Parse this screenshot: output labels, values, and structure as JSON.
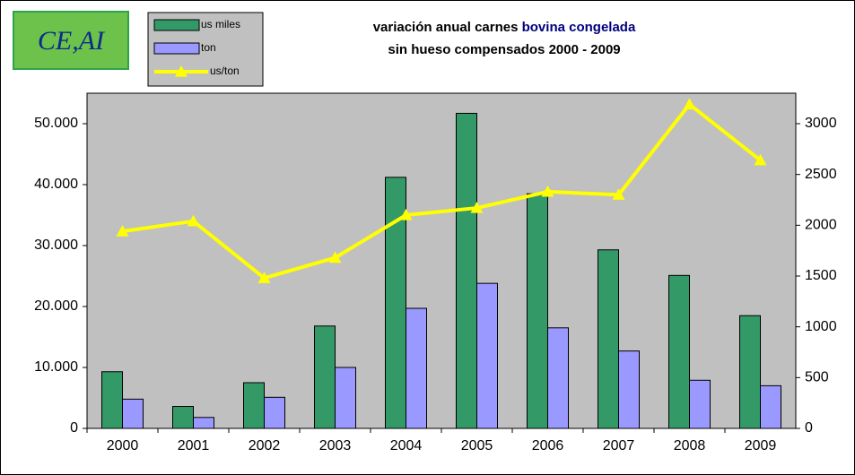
{
  "chart_data": {
    "type": "bar_line",
    "logo": "CE,AI",
    "title_parts": [
      "variación anual carnes ",
      "bovina congelada",
      "sin hueso compensados 2000 -  2009"
    ],
    "title_highlight_color": "#000080",
    "categories": [
      "2000",
      "2001",
      "2002",
      "2003",
      "2004",
      "2005",
      "2006",
      "2007",
      "2008",
      "2009"
    ],
    "series": [
      {
        "name": "us miles",
        "color": "#339966",
        "type": "bar",
        "axis": "y",
        "values": [
          9300,
          3600,
          7500,
          16800,
          41200,
          51700,
          38500,
          29300,
          25100,
          18500
        ]
      },
      {
        "name": "ton",
        "color": "#9999ff",
        "type": "bar",
        "axis": "y",
        "values": [
          4800,
          1800,
          5100,
          10000,
          19700,
          23800,
          16500,
          12700,
          7900,
          7000
        ]
      },
      {
        "name": "us/ton",
        "color": "#ffff00",
        "type": "line",
        "axis": "y2",
        "values": [
          1940,
          2040,
          1480,
          1680,
          2100,
          2170,
          2330,
          2300,
          3190,
          2640
        ]
      }
    ],
    "ylim": [
      0,
      55000
    ],
    "yticks": [
      0,
      {
        "value": 10000,
        "label": "10.000"
      },
      {
        "value": 20000,
        "label": "20.000"
      },
      {
        "value": 30000,
        "label": "30.000"
      },
      {
        "value": 40000,
        "label": "40.000"
      },
      {
        "value": 50000,
        "label": "50.000"
      }
    ],
    "y2lim": [
      0,
      3300
    ],
    "y2ticks": [
      0,
      500,
      1000,
      1500,
      2000,
      2500,
      3000
    ],
    "plot_background": "#c0c0c0"
  }
}
